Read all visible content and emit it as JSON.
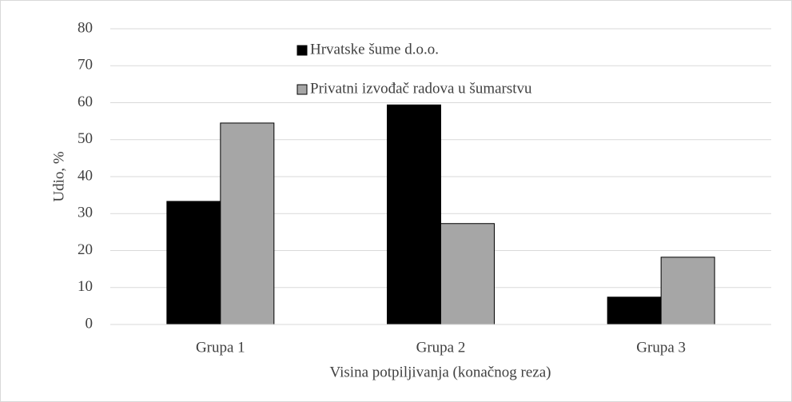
{
  "chart_data": {
    "type": "bar",
    "xlabel": "Visina potpiljivanja (konačnog reza)",
    "ylabel": "Udio, %",
    "categories": [
      "Grupa 1",
      "Grupa 2",
      "Grupa 3"
    ],
    "series": [
      {
        "name": "Hrvatske šume d.o.o.",
        "color": "#000000",
        "values": [
          33.3,
          59.4,
          7.4
        ]
      },
      {
        "name": "Privatni izvođač radova u šumarstvu",
        "color": "#a6a6a6",
        "values": [
          54.5,
          27.3,
          18.2
        ]
      }
    ],
    "ylim": [
      0,
      80
    ],
    "yticks": [
      0,
      10,
      20,
      30,
      40,
      50,
      60,
      70,
      80
    ],
    "grid": true,
    "legend": "top"
  }
}
